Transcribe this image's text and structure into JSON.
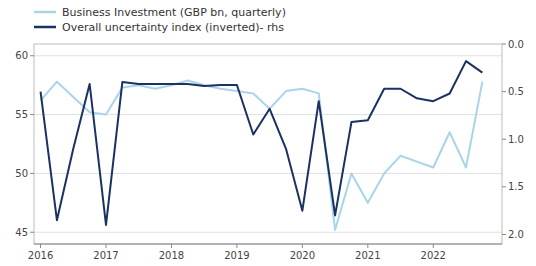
{
  "chart_data": {
    "type": "line",
    "x": [
      2016.0,
      2016.25,
      2016.5,
      2016.75,
      2017.0,
      2017.25,
      2017.5,
      2017.75,
      2018.0,
      2018.25,
      2018.5,
      2018.75,
      2019.0,
      2019.25,
      2019.5,
      2019.75,
      2020.0,
      2020.25,
      2020.5,
      2020.75,
      2021.0,
      2021.25,
      2021.5,
      2021.75,
      2022.0,
      2022.25,
      2022.5,
      2022.75
    ],
    "series": [
      {
        "name": "Business Investment (GBP bn, quarterly)",
        "color": "#a8d5e8",
        "values": [
          56.2,
          57.8,
          56.5,
          55.2,
          55.0,
          57.3,
          57.5,
          57.2,
          57.5,
          57.9,
          57.5,
          57.2,
          57.0,
          56.8,
          55.5,
          57.0,
          57.2,
          56.8,
          45.2,
          50.0,
          47.5,
          50.0,
          51.5,
          51.0,
          50.5,
          53.5,
          50.5,
          57.8
        ]
      },
      {
        "name": "Overall uncertainty index (inverted)- rhs",
        "color": "#1a3263",
        "axis": "y2",
        "values": [
          0.5,
          1.85,
          1.1,
          0.42,
          1.9,
          0.4,
          0.42,
          0.42,
          0.42,
          0.42,
          0.44,
          0.43,
          0.43,
          0.95,
          0.68,
          1.1,
          1.75,
          0.6,
          1.8,
          0.82,
          0.8,
          0.47,
          0.47,
          0.57,
          0.6,
          0.52,
          0.18,
          0.3
        ]
      }
    ],
    "xlim": [
      2015.9,
      2023.05
    ],
    "xticks": [
      2016,
      2017,
      2018,
      2019,
      2020,
      2021,
      2022
    ],
    "ylim": [
      44,
      61
    ],
    "yticks": [
      45,
      50,
      55,
      60
    ],
    "y2lim": [
      2.1,
      0
    ],
    "y2ticks": [
      {
        "value": 0,
        "label": "0.0"
      },
      0.5,
      {
        "value": 1,
        "label": "1.0"
      },
      1.5,
      {
        "value": 2,
        "label": "2.0"
      }
    ],
    "grid": true,
    "legend": "upper left"
  }
}
